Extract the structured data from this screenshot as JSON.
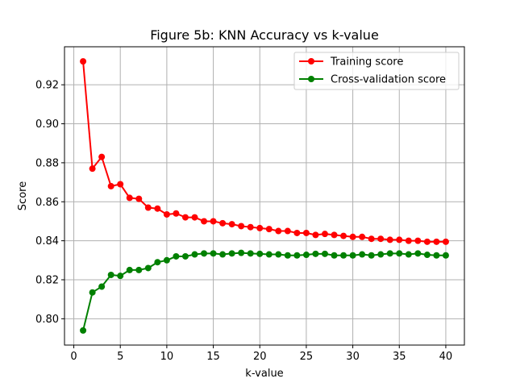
{
  "chart_data": {
    "type": "line",
    "title": "Figure 5b: KNN Accuracy vs k-value",
    "xlabel": "k-value",
    "ylabel": "Score",
    "xlim": [
      -1.0,
      42.0
    ],
    "ylim": [
      0.7865,
      0.9395
    ],
    "xticks": [
      0,
      5,
      10,
      15,
      20,
      25,
      30,
      35,
      40
    ],
    "yticks": [
      0.8,
      0.82,
      0.84,
      0.86,
      0.88,
      0.9,
      0.92
    ],
    "ytick_format": 2,
    "grid": true,
    "legend": "top-right",
    "x": [
      1,
      2,
      3,
      4,
      5,
      6,
      7,
      8,
      9,
      10,
      11,
      12,
      13,
      14,
      15,
      16,
      17,
      18,
      19,
      20,
      21,
      22,
      23,
      24,
      25,
      26,
      27,
      28,
      29,
      30,
      31,
      32,
      33,
      34,
      35,
      36,
      37,
      38,
      39,
      40
    ],
    "series": [
      {
        "name": "Training score",
        "color": "#ff0000",
        "values": [
          0.932,
          0.877,
          0.883,
          0.868,
          0.869,
          0.862,
          0.8615,
          0.857,
          0.8565,
          0.8535,
          0.854,
          0.852,
          0.852,
          0.85,
          0.85,
          0.849,
          0.8485,
          0.8475,
          0.847,
          0.8465,
          0.846,
          0.845,
          0.845,
          0.844,
          0.844,
          0.843,
          0.8435,
          0.843,
          0.8425,
          0.842,
          0.842,
          0.841,
          0.841,
          0.8405,
          0.8405,
          0.84,
          0.84,
          0.8395,
          0.8395,
          0.8395
        ]
      },
      {
        "name": "Cross-validation score",
        "color": "#008000",
        "values": [
          0.794,
          0.8135,
          0.8165,
          0.8225,
          0.822,
          0.825,
          0.825,
          0.826,
          0.829,
          0.83,
          0.832,
          0.832,
          0.833,
          0.8335,
          0.8335,
          0.833,
          0.8335,
          0.8338,
          0.8335,
          0.8333,
          0.833,
          0.833,
          0.8325,
          0.8325,
          0.8328,
          0.8333,
          0.8333,
          0.8325,
          0.8325,
          0.8325,
          0.833,
          0.8325,
          0.833,
          0.8335,
          0.8335,
          0.833,
          0.8335,
          0.8328,
          0.8325,
          0.8325
        ]
      }
    ]
  }
}
